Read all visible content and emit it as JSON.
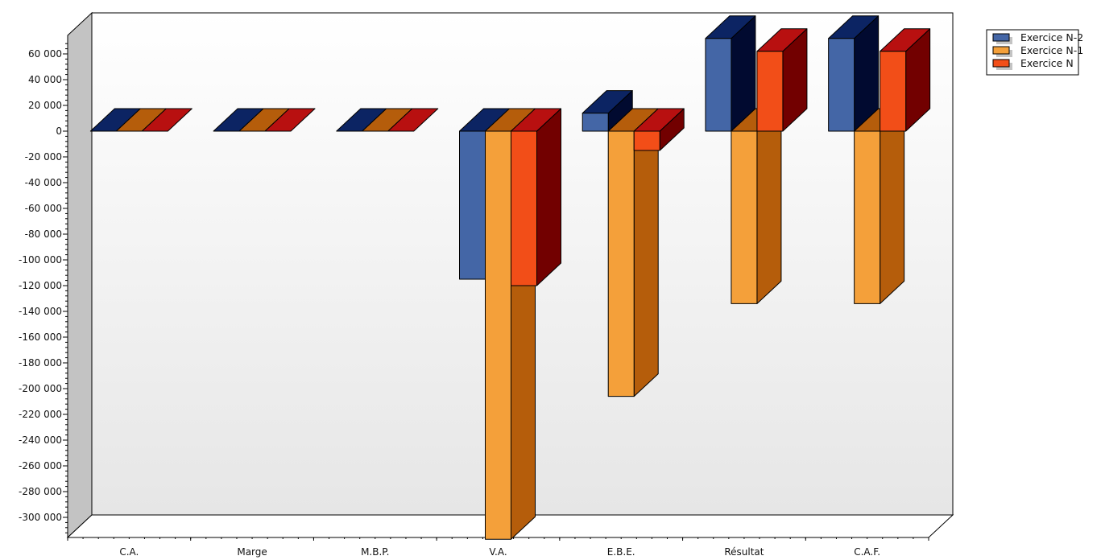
{
  "chart_data": {
    "type": "bar",
    "style": "3d-clustered",
    "title": "",
    "xlabel": "",
    "ylabel": "",
    "categories": [
      "C.A.",
      "Marge",
      "M.B.P.",
      "V.A.",
      "E.B.E.",
      "Résultat",
      "C.A.F."
    ],
    "series": [
      {
        "name": "Exercice N-2",
        "values": [
          0,
          0,
          0,
          -115000,
          14000,
          72000,
          72000
        ],
        "colors": {
          "front": "#4466a6",
          "top": "#0c2463",
          "side": "#010a30"
        }
      },
      {
        "name": "Exercice N-1",
        "values": [
          0,
          0,
          0,
          -317000,
          -206000,
          -134000,
          -134000
        ],
        "colors": {
          "front": "#f4a03a",
          "top": "#b55d0b",
          "side": "#b55d0b"
        }
      },
      {
        "name": "Exercice N",
        "values": [
          0,
          0,
          0,
          -120000,
          -15000,
          62000,
          62000
        ],
        "colors": {
          "front": "#f24e18",
          "top": "#b81010",
          "side": "#720000"
        }
      }
    ],
    "ylim": [
      -300000,
      60000
    ],
    "yticks": [
      {
        "value": 60000,
        "label": "60 000"
      },
      {
        "value": 40000,
        "label": "40 000"
      },
      {
        "value": 20000,
        "label": "20 000"
      },
      {
        "value": 0,
        "label": "0"
      },
      {
        "value": -20000,
        "label": "-20 000"
      },
      {
        "value": -40000,
        "label": "-40 000"
      },
      {
        "value": -60000,
        "label": "-60 000"
      },
      {
        "value": -80000,
        "label": "-80 000"
      },
      {
        "value": -100000,
        "label": "-100 000"
      },
      {
        "value": -120000,
        "label": "-120 000"
      },
      {
        "value": -140000,
        "label": "-140 000"
      },
      {
        "value": -160000,
        "label": "-160 000"
      },
      {
        "value": -180000,
        "label": "-180 000"
      },
      {
        "value": -200000,
        "label": "-200 000"
      },
      {
        "value": -220000,
        "label": "-220 000"
      },
      {
        "value": -240000,
        "label": "-240 000"
      },
      {
        "value": -260000,
        "label": "-260 000"
      },
      {
        "value": -280000,
        "label": "-280 000"
      },
      {
        "value": -300000,
        "label": "-300 000"
      }
    ],
    "grid": false,
    "legend_position": "top-right",
    "colors": {
      "wall_top": "#ffffff",
      "wall_bottom": "#e6e6e6",
      "left_wall": "#c3c3c3",
      "floor": "#ffffff",
      "outline": "#000000"
    }
  }
}
